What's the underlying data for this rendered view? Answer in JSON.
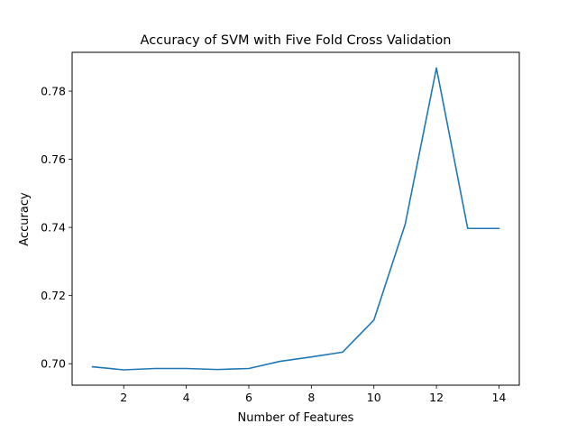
{
  "chart_data": {
    "type": "line",
    "title": "Accuracy of SVM with Five Fold Cross Validation",
    "xlabel": "Number of Features",
    "ylabel": "Accuracy",
    "xlim": [
      0.35,
      14.65
    ],
    "ylim": [
      0.6937,
      0.7914
    ],
    "xticks": [
      2,
      4,
      6,
      8,
      10,
      12,
      14
    ],
    "yticks": [
      0.7,
      0.72,
      0.74,
      0.76,
      0.78
    ],
    "xtick_labels": [
      "2",
      "4",
      "6",
      "8",
      "10",
      "12",
      "14"
    ],
    "ytick_labels": [
      "0.70",
      "0.72",
      "0.74",
      "0.76",
      "0.78"
    ],
    "grid": false,
    "series": [
      {
        "color": "#1f77b4",
        "x": [
          1,
          2,
          3,
          4,
          5,
          6,
          7,
          8,
          9,
          10,
          11,
          12,
          13,
          14
        ],
        "y": [
          0.6991,
          0.6982,
          0.6986,
          0.6986,
          0.6983,
          0.6986,
          0.7007,
          0.702,
          0.7034,
          0.7128,
          0.7409,
          0.7868,
          0.7397,
          0.7397
        ]
      }
    ]
  }
}
